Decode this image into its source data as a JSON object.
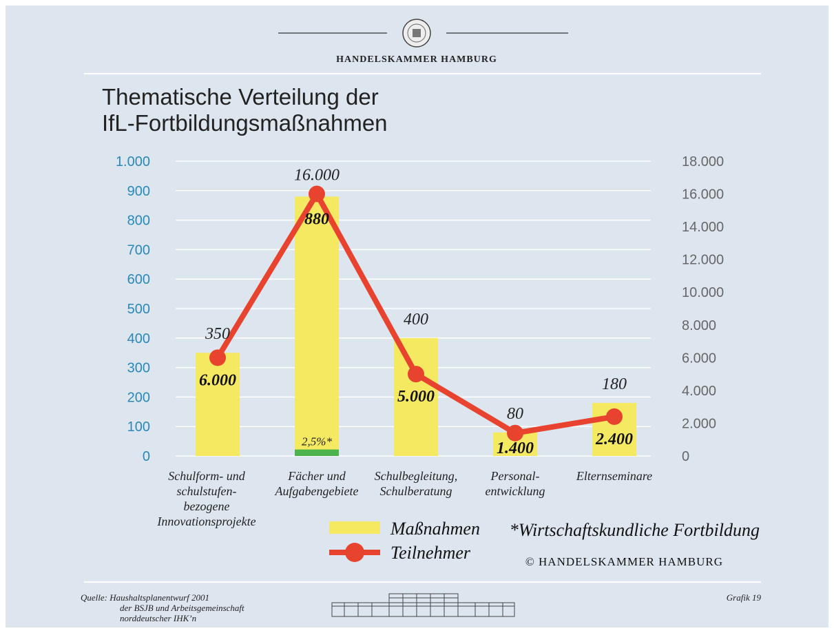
{
  "header": {
    "title": "HANDELSKAMMER HAMBURG"
  },
  "chart_data": {
    "type": "bar_line",
    "title": "Thematische Verteilung der\nIfL-Fortbildungsmaßnahmen",
    "categories": [
      "Schulform- und\nschulstufen-\nbezogene\nInnovationsprojekte",
      "Fächer und\nAufgabengebiete",
      "Schulbegleitung,\nSchulberatung",
      "Personal-\nentwicklung",
      "Elternseminare"
    ],
    "series": [
      {
        "name": "Maßnahmen",
        "type": "bar",
        "color": "#f5e961",
        "values": [
          350,
          880,
          400,
          80,
          180
        ]
      },
      {
        "name": "Teilnehmer",
        "type": "line",
        "axis": "y2",
        "color": "#e8432f",
        "values": [
          6000,
          16000,
          5000,
          1400,
          2400
        ],
        "value_labels": [
          "6.000",
          "16.000",
          "5.000",
          "1.400",
          "2.400"
        ]
      }
    ],
    "highlight": {
      "category": 1,
      "value": 2.5,
      "label": "2,5%*",
      "color": "#4db34d"
    },
    "ylim": [
      0,
      1000
    ],
    "yticks": [
      0,
      100,
      200,
      300,
      400,
      500,
      600,
      700,
      800,
      900,
      {
        "value": 1000,
        "label": "1.000"
      }
    ],
    "y2lim": [
      0,
      18000
    ],
    "y2ticks": [
      0,
      {
        "value": 2000,
        "label": "2.000"
      },
      {
        "value": 4000,
        "label": "4.000"
      },
      {
        "value": 6000,
        "label": "6.000"
      },
      {
        "value": 8000,
        "label": "8.000"
      },
      {
        "value": 10000,
        "label": "10.000"
      },
      {
        "value": 12000,
        "label": "12.000"
      },
      {
        "value": 14000,
        "label": "14.000"
      },
      {
        "value": 16000,
        "label": "16.000"
      },
      {
        "value": 18000,
        "label": "18.000"
      }
    ],
    "grid": true,
    "footnote": "*Wirtschaftskundliche Fortbildung",
    "copyright": "© HANDELSKAMMER HAMBURG"
  },
  "footer": {
    "source": "Quelle: Haushaltsplanentwurf 2001\nder BSJB und Arbeitsgemeinschaft\nnorddeutscher IHK’n",
    "figure": "Grafik 19"
  }
}
